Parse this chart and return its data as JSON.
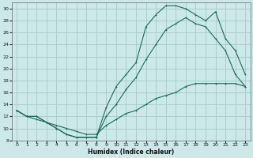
{
  "xlabel": "Humidex (Indice chaleur)",
  "bg_color": "#cce8e8",
  "grid_color": "#aacece",
  "line_color": "#1a6b5a",
  "xlim": [
    -0.5,
    23.5
  ],
  "ylim": [
    8,
    31
  ],
  "xticks": [
    0,
    1,
    2,
    3,
    4,
    5,
    6,
    7,
    8,
    9,
    10,
    11,
    12,
    13,
    14,
    15,
    16,
    17,
    18,
    19,
    20,
    21,
    22,
    23
  ],
  "yticks": [
    8,
    10,
    12,
    14,
    16,
    18,
    20,
    22,
    24,
    26,
    28,
    30
  ],
  "curve1_x": [
    0,
    1,
    2,
    3,
    4,
    5,
    6,
    7,
    8,
    9,
    10,
    11,
    12,
    13,
    14,
    15,
    16,
    17,
    18,
    19,
    20,
    21,
    22,
    23
  ],
  "curve1_y": [
    13,
    12,
    12,
    11,
    10,
    9,
    8.5,
    8.5,
    8.5,
    13.5,
    17,
    19,
    21,
    27,
    29,
    30.5,
    30.5,
    30,
    29,
    28,
    29.5,
    25,
    23,
    19
  ],
  "curve2_x": [
    0,
    1,
    2,
    3,
    4,
    5,
    6,
    7,
    8,
    9,
    10,
    11,
    12,
    13,
    14,
    15,
    16,
    17,
    18,
    19,
    20,
    21,
    22,
    23
  ],
  "curve2_y": [
    13,
    12,
    12,
    11,
    10,
    9,
    8.5,
    8.5,
    8.5,
    12,
    14,
    16.5,
    18.5,
    21.5,
    24,
    26.5,
    27.5,
    28.5,
    27.5,
    27,
    25,
    23,
    19,
    17
  ],
  "curve3_x": [
    0,
    1,
    2,
    3,
    4,
    5,
    6,
    7,
    8,
    9,
    10,
    11,
    12,
    13,
    14,
    15,
    16,
    17,
    18,
    19,
    20,
    21,
    22,
    23
  ],
  "curve3_y": [
    13,
    12,
    11.5,
    11,
    10.5,
    10,
    9.5,
    9,
    9,
    10.5,
    11.5,
    12.5,
    13,
    14,
    15,
    15.5,
    16,
    17,
    17.5,
    17.5,
    17.5,
    17.5,
    17.5,
    17
  ]
}
